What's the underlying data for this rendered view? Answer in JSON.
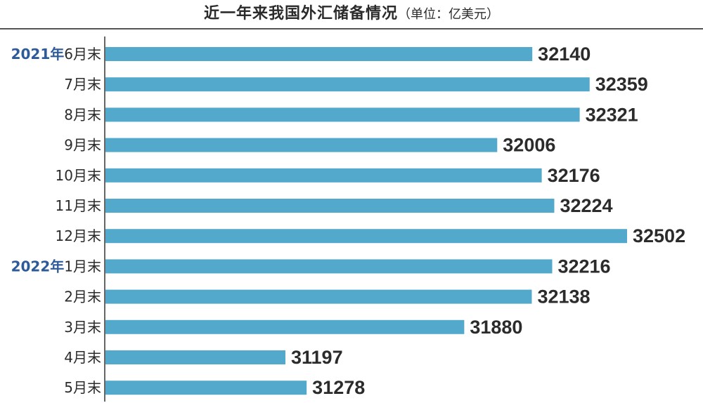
{
  "title": {
    "main": "近一年来我国外汇储备情况",
    "sub": "（单位：亿美元）"
  },
  "colors": {
    "bar": "#52a9cc",
    "year_label": "#2d5b9a",
    "text": "#2b2b2b",
    "axis": "#333333"
  },
  "chart_data": {
    "type": "bar",
    "orientation": "horizontal",
    "title": "近一年来我国外汇储备情况（单位：亿美元）",
    "unit": "亿美元",
    "categories": [
      "6月末",
      "7月末",
      "8月末",
      "9月末",
      "10月末",
      "11月末",
      "12月末",
      "1月末",
      "2月末",
      "3月末",
      "4月末",
      "5月末"
    ],
    "year_labels": [
      "2021年",
      "",
      "",
      "",
      "",
      "",
      "",
      "2022年",
      "",
      "",
      "",
      ""
    ],
    "values": [
      32140,
      32359,
      32321,
      32006,
      32176,
      32224,
      32502,
      32216,
      32138,
      31880,
      31197,
      31278
    ],
    "grid": false,
    "legend": "none"
  }
}
